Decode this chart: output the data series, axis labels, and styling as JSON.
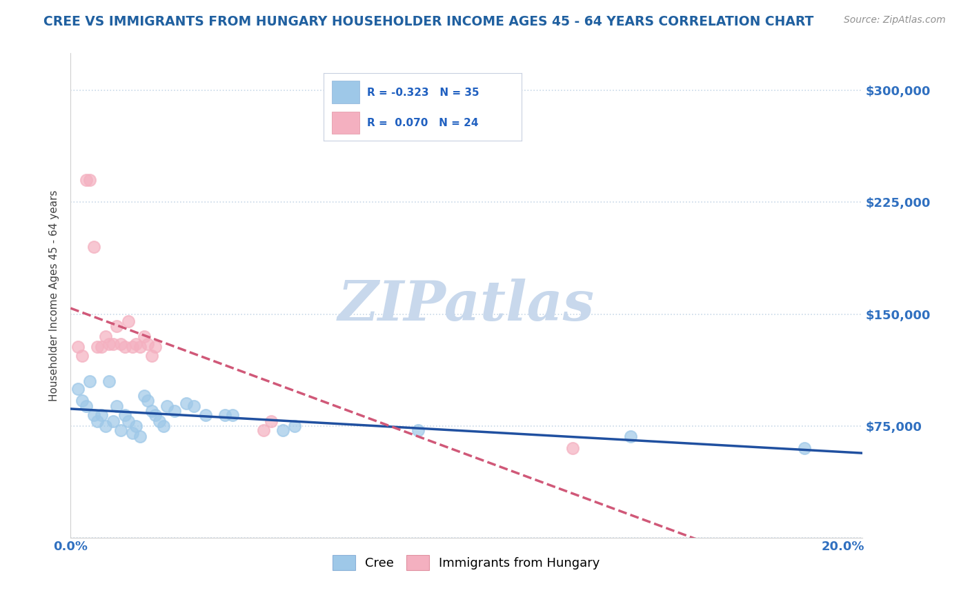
{
  "title": "CREE VS IMMIGRANTS FROM HUNGARY HOUSEHOLDER INCOME AGES 45 - 64 YEARS CORRELATION CHART",
  "source": "Source: ZipAtlas.com",
  "ylabel": "Householder Income Ages 45 - 64 years",
  "xlim": [
    0.0,
    0.205
  ],
  "ylim": [
    0,
    325000
  ],
  "yticks": [
    0,
    75000,
    150000,
    225000,
    300000
  ],
  "ytick_labels": [
    "",
    "$75,000",
    "$150,000",
    "$225,000",
    "$300,000"
  ],
  "xticks": [
    0.0,
    0.05,
    0.1,
    0.15,
    0.2
  ],
  "xtick_labels": [
    "0.0%",
    "",
    "",
    "",
    "20.0%"
  ],
  "watermark": "ZIPatlas",
  "cree_points": [
    [
      0.002,
      100000
    ],
    [
      0.003,
      92000
    ],
    [
      0.004,
      88000
    ],
    [
      0.005,
      105000
    ],
    [
      0.006,
      82000
    ],
    [
      0.007,
      78000
    ],
    [
      0.008,
      82000
    ],
    [
      0.009,
      75000
    ],
    [
      0.01,
      105000
    ],
    [
      0.011,
      78000
    ],
    [
      0.012,
      88000
    ],
    [
      0.013,
      72000
    ],
    [
      0.014,
      82000
    ],
    [
      0.015,
      78000
    ],
    [
      0.016,
      70000
    ],
    [
      0.017,
      75000
    ],
    [
      0.018,
      68000
    ],
    [
      0.019,
      95000
    ],
    [
      0.02,
      92000
    ],
    [
      0.021,
      85000
    ],
    [
      0.022,
      82000
    ],
    [
      0.023,
      78000
    ],
    [
      0.024,
      75000
    ],
    [
      0.025,
      88000
    ],
    [
      0.027,
      85000
    ],
    [
      0.03,
      90000
    ],
    [
      0.032,
      88000
    ],
    [
      0.035,
      82000
    ],
    [
      0.04,
      82000
    ],
    [
      0.042,
      82000
    ],
    [
      0.055,
      72000
    ],
    [
      0.058,
      75000
    ],
    [
      0.09,
      72000
    ],
    [
      0.145,
      68000
    ],
    [
      0.19,
      60000
    ]
  ],
  "hungary_points": [
    [
      0.002,
      128000
    ],
    [
      0.003,
      122000
    ],
    [
      0.004,
      240000
    ],
    [
      0.005,
      240000
    ],
    [
      0.006,
      195000
    ],
    [
      0.007,
      128000
    ],
    [
      0.008,
      128000
    ],
    [
      0.009,
      135000
    ],
    [
      0.01,
      130000
    ],
    [
      0.011,
      130000
    ],
    [
      0.012,
      142000
    ],
    [
      0.013,
      130000
    ],
    [
      0.014,
      128000
    ],
    [
      0.015,
      145000
    ],
    [
      0.016,
      128000
    ],
    [
      0.017,
      130000
    ],
    [
      0.018,
      128000
    ],
    [
      0.019,
      135000
    ],
    [
      0.02,
      130000
    ],
    [
      0.021,
      122000
    ],
    [
      0.022,
      128000
    ],
    [
      0.05,
      72000
    ],
    [
      0.052,
      78000
    ],
    [
      0.13,
      60000
    ]
  ],
  "cree_color": "#9ec8e8",
  "hungary_color": "#f4b0c0",
  "cree_line_color": "#2050a0",
  "hungary_line_color": "#d05878",
  "background_color": "#ffffff",
  "grid_color": "#c8d8e8",
  "title_color": "#2060a0",
  "ylabel_color": "#404040",
  "tick_label_color": "#3070c0",
  "watermark_color": "#c8d8ec",
  "source_color": "#909090",
  "legend_box_color": "#e8eef8",
  "legend_text_color": "#2060c0"
}
